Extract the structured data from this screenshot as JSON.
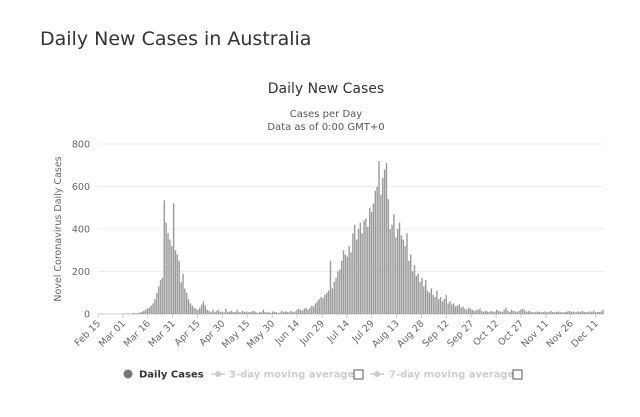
{
  "page": {
    "title": "Daily New Cases in Australia"
  },
  "chart_data": {
    "type": "bar",
    "title": "Daily New Cases",
    "subtitle_lines": [
      "Cases per Day",
      "Data as of 0:00 GMT+0"
    ],
    "ylabel": "Novel Coronavirus Daily Cases",
    "xlabel": "",
    "ylim": [
      0,
      800
    ],
    "yticks": [
      "0",
      "200",
      "400",
      "600",
      "800"
    ],
    "x_start": "Feb 15",
    "x_end": "Dec 16",
    "xticks": [
      "Feb 15",
      "Mar 01",
      "Mar 16",
      "Mar 31",
      "Apr 15",
      "Apr 30",
      "May 15",
      "May 30",
      "Jun 14",
      "Jun 29",
      "Jul 14",
      "Jul 29",
      "Aug 13",
      "Aug 28",
      "Sep 12",
      "Sep 27",
      "Oct 12",
      "Oct 27",
      "Nov 11",
      "Nov 26",
      "Dec 11"
    ],
    "grid": true,
    "bar_color": "#999999",
    "series": [
      {
        "name": "Daily Cases",
        "values": [
          0,
          0,
          0,
          0,
          0,
          0,
          0,
          0,
          0,
          0,
          0,
          0,
          0,
          1,
          2,
          3,
          2,
          0,
          5,
          4,
          3,
          5,
          8,
          10,
          15,
          20,
          27,
          30,
          40,
          50,
          70,
          100,
          130,
          160,
          170,
          535,
          430,
          380,
          350,
          320,
          520,
          300,
          280,
          250,
          150,
          190,
          120,
          100,
          70,
          50,
          40,
          30,
          25,
          20,
          30,
          45,
          60,
          40,
          20,
          15,
          10,
          20,
          10,
          15,
          20,
          10,
          12,
          8,
          25,
          10,
          12,
          15,
          10,
          10,
          20,
          10,
          8,
          15,
          10,
          12,
          8,
          10,
          12,
          15,
          10,
          5,
          10,
          8,
          20,
          10,
          8,
          10,
          5,
          12,
          10,
          10,
          5,
          8,
          15,
          10,
          12,
          10,
          8,
          15,
          10,
          12,
          20,
          25,
          20,
          15,
          25,
          30,
          20,
          30,
          40,
          35,
          50,
          60,
          70,
          80,
          75,
          90,
          100,
          110,
          250,
          120,
          150,
          170,
          200,
          210,
          250,
          300,
          280,
          270,
          320,
          290,
          380,
          420,
          350,
          400,
          430,
          380,
          440,
          450,
          410,
          500,
          480,
          520,
          580,
          600,
          720,
          560,
          640,
          680,
          710,
          540,
          400,
          420,
          470,
          360,
          400,
          430,
          370,
          350,
          320,
          380,
          250,
          280,
          200,
          230,
          180,
          190,
          150,
          170,
          130,
          160,
          110,
          100,
          120,
          90,
          80,
          110,
          70,
          80,
          60,
          70,
          90,
          50,
          60,
          45,
          50,
          35,
          40,
          45,
          30,
          35,
          25,
          20,
          30,
          25,
          20,
          15,
          18,
          20,
          25,
          15,
          10,
          15,
          12,
          10,
          15,
          12,
          10,
          20,
          15,
          12,
          10,
          20,
          30,
          15,
          10,
          20,
          15,
          12,
          10,
          15,
          20,
          25,
          18,
          10,
          15,
          12,
          10,
          8,
          10,
          12,
          10,
          8,
          10,
          12,
          8,
          10,
          15,
          10,
          8,
          10,
          12,
          10,
          8,
          8,
          10,
          12,
          15,
          10,
          12,
          8,
          10,
          12,
          10,
          15,
          10,
          8,
          10,
          12,
          10,
          15,
          8,
          10,
          10,
          12,
          20
        ]
      }
    ],
    "legend": [
      {
        "label": "Daily Cases",
        "color": "#333333",
        "active": true
      },
      {
        "label": "3-day moving average",
        "color": "#cccccc",
        "active": false
      },
      {
        "label": "7-day moving average",
        "color": "#cccccc",
        "active": false
      }
    ]
  }
}
